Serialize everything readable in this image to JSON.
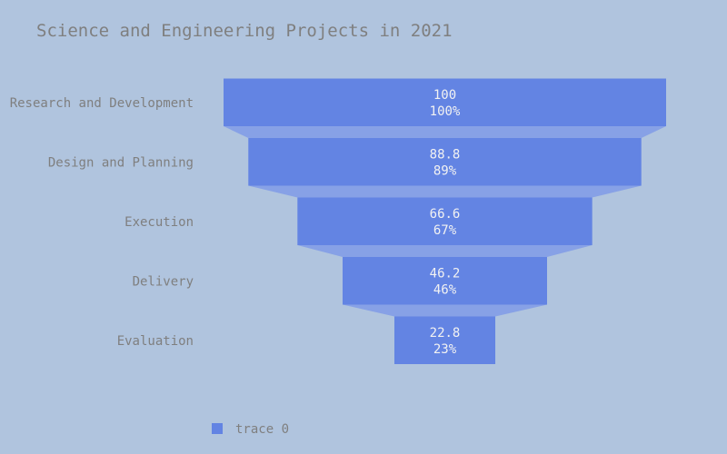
{
  "chart_data": {
    "type": "funnel",
    "title": "Science and Engineering Projects in 2021",
    "categories": [
      "Research and Development",
      "Design and Planning",
      "Execution",
      "Delivery",
      "Evaluation"
    ],
    "series": [
      {
        "name": "trace 0",
        "values": [
          100,
          88.8,
          66.6,
          46.2,
          22.8
        ],
        "percent_labels": [
          "100%",
          "89%",
          "67%",
          "46%",
          "23%"
        ]
      }
    ],
    "legend_position": "bottom-left",
    "colors": {
      "background": "#b0c4de",
      "bar": "#6384e3",
      "connector": "#87a1e6",
      "axis_text": "#7f7f7f",
      "value_text": "#f2f2f2"
    }
  }
}
